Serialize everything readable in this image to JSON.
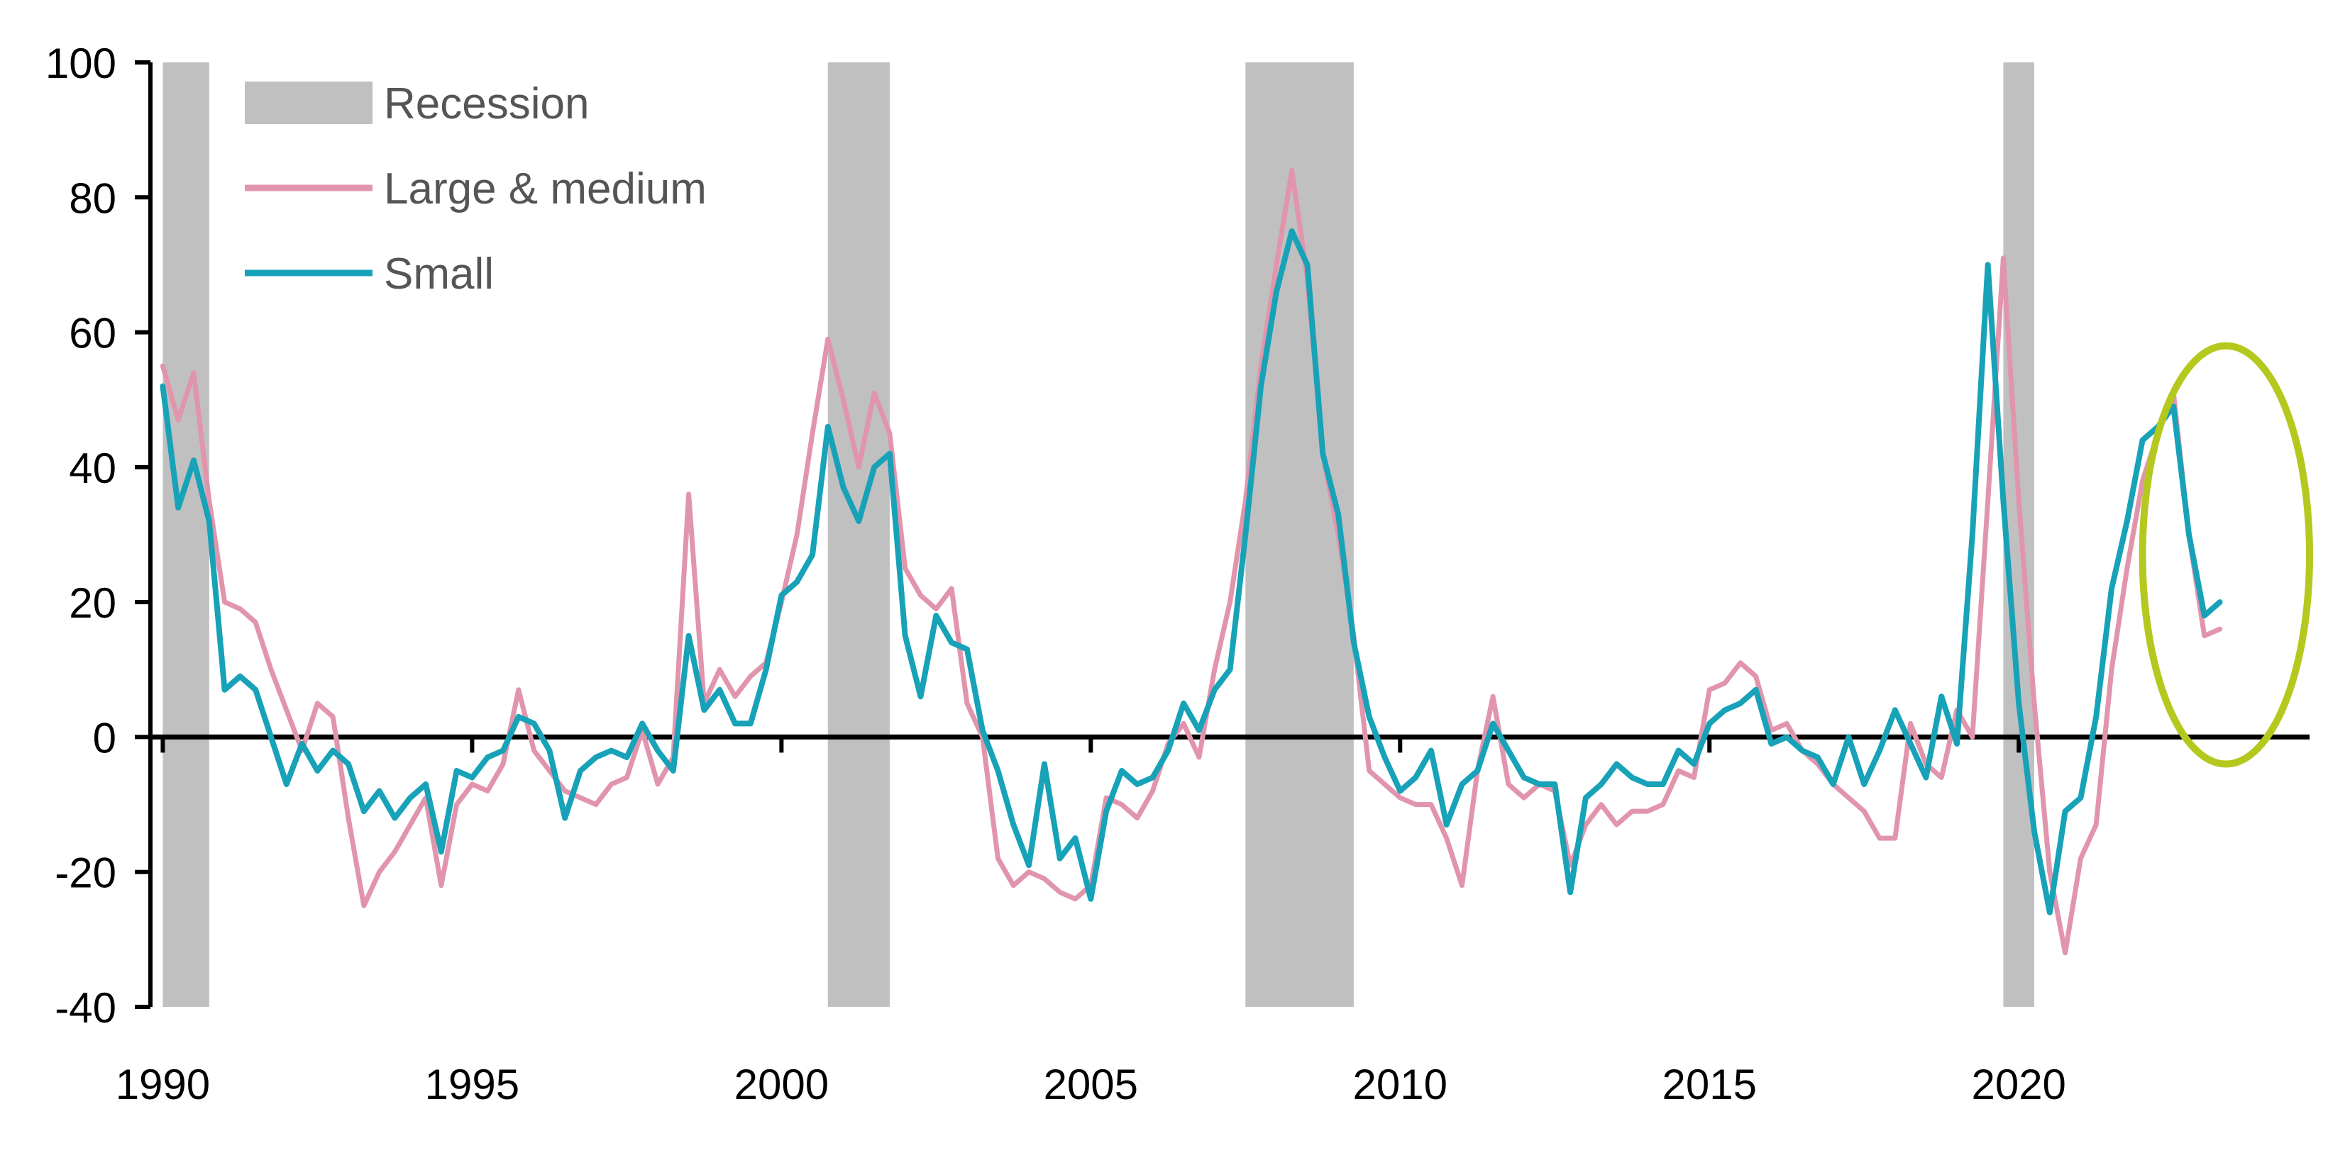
{
  "chart_data": {
    "type": "line",
    "title": "",
    "xlabel": "",
    "ylabel": "",
    "xlim": [
      1989.8,
      2024.7
    ],
    "ylim": [
      -40,
      100
    ],
    "yticks": [
      100,
      80,
      60,
      40,
      20,
      0,
      -20,
      -40
    ],
    "xticks": [
      1990,
      1995,
      2000,
      2005,
      2010,
      2015,
      2020
    ],
    "legend": {
      "placement": "top-left",
      "entries": [
        {
          "label": "Recession",
          "kind": "band",
          "color": "#c0c0c0"
        },
        {
          "label": "Large & medium",
          "kind": "line",
          "color": "#e195ac"
        },
        {
          "label": "Small",
          "kind": "line",
          "color": "#17a2b8"
        }
      ]
    },
    "recessions": [
      [
        1990.0,
        1990.75
      ],
      [
        2000.75,
        2001.75
      ],
      [
        2007.5,
        2009.25
      ],
      [
        2019.75,
        2020.25
      ]
    ],
    "highlight_ellipse": {
      "x_range": [
        2022.0,
        2024.7
      ],
      "y_range": [
        -4,
        58
      ],
      "color": "#b5c81e"
    },
    "zero_line": true,
    "series": [
      {
        "name": "Large & medium",
        "color": "#e195ac",
        "points": [
          [
            1990.0,
            55
          ],
          [
            1990.25,
            47
          ],
          [
            1990.5,
            54
          ],
          [
            1990.75,
            35
          ],
          [
            1991.0,
            20
          ],
          [
            1991.25,
            19
          ],
          [
            1991.5,
            17
          ],
          [
            1991.75,
            10
          ],
          [
            1992.0,
            4
          ],
          [
            1992.25,
            -2
          ],
          [
            1992.5,
            5
          ],
          [
            1992.75,
            3
          ],
          [
            1993.0,
            -12
          ],
          [
            1993.25,
            -25
          ],
          [
            1993.5,
            -20
          ],
          [
            1993.75,
            -17
          ],
          [
            1994.0,
            -13
          ],
          [
            1994.25,
            -9
          ],
          [
            1994.5,
            -22
          ],
          [
            1994.75,
            -10
          ],
          [
            1995.0,
            -7
          ],
          [
            1995.25,
            -8
          ],
          [
            1995.5,
            -4
          ],
          [
            1995.75,
            7
          ],
          [
            1996.0,
            -2
          ],
          [
            1996.25,
            -5
          ],
          [
            1996.5,
            -8
          ],
          [
            1996.75,
            -9
          ],
          [
            1997.0,
            -10
          ],
          [
            1997.25,
            -7
          ],
          [
            1997.5,
            -6
          ],
          [
            1997.75,
            1
          ],
          [
            1998.0,
            -7
          ],
          [
            1998.25,
            -3
          ],
          [
            1998.5,
            36
          ],
          [
            1998.75,
            5
          ],
          [
            1999.0,
            10
          ],
          [
            1999.25,
            6
          ],
          [
            1999.5,
            9
          ],
          [
            1999.75,
            11
          ],
          [
            2000.0,
            20
          ],
          [
            2000.25,
            30
          ],
          [
            2000.5,
            45
          ],
          [
            2000.75,
            59
          ],
          [
            2001.0,
            50
          ],
          [
            2001.25,
            40
          ],
          [
            2001.5,
            51
          ],
          [
            2001.75,
            45
          ],
          [
            2002.0,
            25
          ],
          [
            2002.25,
            21
          ],
          [
            2002.5,
            19
          ],
          [
            2002.75,
            22
          ],
          [
            2003.0,
            5
          ],
          [
            2003.25,
            0
          ],
          [
            2003.5,
            -18
          ],
          [
            2003.75,
            -22
          ],
          [
            2004.0,
            -20
          ],
          [
            2004.25,
            -21
          ],
          [
            2004.5,
            -23
          ],
          [
            2004.75,
            -24
          ],
          [
            2005.0,
            -22
          ],
          [
            2005.25,
            -9
          ],
          [
            2005.5,
            -10
          ],
          [
            2005.75,
            -12
          ],
          [
            2006.0,
            -8
          ],
          [
            2006.25,
            -1
          ],
          [
            2006.5,
            2
          ],
          [
            2006.75,
            -3
          ],
          [
            2007.0,
            10
          ],
          [
            2007.25,
            20
          ],
          [
            2007.5,
            35
          ],
          [
            2007.75,
            55
          ],
          [
            2008.0,
            70
          ],
          [
            2008.25,
            84
          ],
          [
            2008.5,
            68
          ],
          [
            2008.75,
            42
          ],
          [
            2009.0,
            30
          ],
          [
            2009.25,
            15
          ],
          [
            2009.5,
            -5
          ],
          [
            2009.75,
            -7
          ],
          [
            2010.0,
            -9
          ],
          [
            2010.25,
            -10
          ],
          [
            2010.5,
            -10
          ],
          [
            2010.75,
            -15
          ],
          [
            2011.0,
            -22
          ],
          [
            2011.25,
            -5
          ],
          [
            2011.5,
            6
          ],
          [
            2011.75,
            -7
          ],
          [
            2012.0,
            -9
          ],
          [
            2012.25,
            -7
          ],
          [
            2012.5,
            -8
          ],
          [
            2012.75,
            -19
          ],
          [
            2013.0,
            -13
          ],
          [
            2013.25,
            -10
          ],
          [
            2013.5,
            -13
          ],
          [
            2013.75,
            -11
          ],
          [
            2014.0,
            -11
          ],
          [
            2014.25,
            -10
          ],
          [
            2014.5,
            -5
          ],
          [
            2014.75,
            -6
          ],
          [
            2015.0,
            7
          ],
          [
            2015.25,
            8
          ],
          [
            2015.5,
            11
          ],
          [
            2015.75,
            9
          ],
          [
            2016.0,
            1
          ],
          [
            2016.25,
            2
          ],
          [
            2016.5,
            -2
          ],
          [
            2016.75,
            -4
          ],
          [
            2017.0,
            -7
          ],
          [
            2017.25,
            -9
          ],
          [
            2017.5,
            -11
          ],
          [
            2017.75,
            -15
          ],
          [
            2018.0,
            -15
          ],
          [
            2018.25,
            2
          ],
          [
            2018.5,
            -4
          ],
          [
            2018.75,
            -6
          ],
          [
            2019.0,
            4
          ],
          [
            2019.25,
            0
          ],
          [
            2019.5,
            35
          ],
          [
            2019.75,
            71
          ],
          [
            2020.0,
            35
          ],
          [
            2020.25,
            5
          ],
          [
            2020.5,
            -20
          ],
          [
            2020.75,
            -32
          ],
          [
            2021.0,
            -18
          ],
          [
            2021.25,
            -13
          ],
          [
            2021.5,
            10
          ],
          [
            2021.75,
            25
          ],
          [
            2022.0,
            38
          ],
          [
            2022.25,
            45
          ],
          [
            2022.5,
            51
          ],
          [
            2022.75,
            30
          ],
          [
            2023.0,
            15
          ],
          [
            2023.25,
            16
          ]
        ]
      },
      {
        "name": "Small",
        "color": "#17a2b8",
        "points": [
          [
            1990.0,
            52
          ],
          [
            1990.25,
            34
          ],
          [
            1990.5,
            41
          ],
          [
            1990.75,
            32
          ],
          [
            1991.0,
            7
          ],
          [
            1991.25,
            9
          ],
          [
            1991.5,
            7
          ],
          [
            1991.75,
            0
          ],
          [
            1992.0,
            -7
          ],
          [
            1992.25,
            -1
          ],
          [
            1992.5,
            -5
          ],
          [
            1992.75,
            -2
          ],
          [
            1993.0,
            -4
          ],
          [
            1993.25,
            -11
          ],
          [
            1993.5,
            -8
          ],
          [
            1993.75,
            -12
          ],
          [
            1994.0,
            -9
          ],
          [
            1994.25,
            -7
          ],
          [
            1994.5,
            -17
          ],
          [
            1994.75,
            -5
          ],
          [
            1995.0,
            -6
          ],
          [
            1995.25,
            -3
          ],
          [
            1995.5,
            -2
          ],
          [
            1995.75,
            3
          ],
          [
            1996.0,
            2
          ],
          [
            1996.25,
            -2
          ],
          [
            1996.5,
            -12
          ],
          [
            1996.75,
            -5
          ],
          [
            1997.0,
            -3
          ],
          [
            1997.25,
            -2
          ],
          [
            1997.5,
            -3
          ],
          [
            1997.75,
            2
          ],
          [
            1998.0,
            -2
          ],
          [
            1998.25,
            -5
          ],
          [
            1998.5,
            15
          ],
          [
            1998.75,
            4
          ],
          [
            1999.0,
            7
          ],
          [
            1999.25,
            2
          ],
          [
            1999.5,
            2
          ],
          [
            1999.75,
            10
          ],
          [
            2000.0,
            21
          ],
          [
            2000.25,
            23
          ],
          [
            2000.5,
            27
          ],
          [
            2000.75,
            46
          ],
          [
            2001.0,
            37
          ],
          [
            2001.25,
            32
          ],
          [
            2001.5,
            40
          ],
          [
            2001.75,
            42
          ],
          [
            2002.0,
            15
          ],
          [
            2002.25,
            6
          ],
          [
            2002.5,
            18
          ],
          [
            2002.75,
            14
          ],
          [
            2003.0,
            13
          ],
          [
            2003.25,
            1
          ],
          [
            2003.5,
            -5
          ],
          [
            2003.75,
            -13
          ],
          [
            2004.0,
            -19
          ],
          [
            2004.25,
            -4
          ],
          [
            2004.5,
            -18
          ],
          [
            2004.75,
            -15
          ],
          [
            2005.0,
            -24
          ],
          [
            2005.25,
            -11
          ],
          [
            2005.5,
            -5
          ],
          [
            2005.75,
            -7
          ],
          [
            2006.0,
            -6
          ],
          [
            2006.25,
            -2
          ],
          [
            2006.5,
            5
          ],
          [
            2006.75,
            1
          ],
          [
            2007.0,
            7
          ],
          [
            2007.25,
            10
          ],
          [
            2007.5,
            30
          ],
          [
            2007.75,
            52
          ],
          [
            2008.0,
            66
          ],
          [
            2008.25,
            75
          ],
          [
            2008.5,
            70
          ],
          [
            2008.75,
            42
          ],
          [
            2009.0,
            33
          ],
          [
            2009.25,
            14
          ],
          [
            2009.5,
            3
          ],
          [
            2009.75,
            -3
          ],
          [
            2010.0,
            -8
          ],
          [
            2010.25,
            -6
          ],
          [
            2010.5,
            -2
          ],
          [
            2010.75,
            -13
          ],
          [
            2011.0,
            -7
          ],
          [
            2011.25,
            -5
          ],
          [
            2011.5,
            2
          ],
          [
            2011.75,
            -2
          ],
          [
            2012.0,
            -6
          ],
          [
            2012.25,
            -7
          ],
          [
            2012.5,
            -7
          ],
          [
            2012.75,
            -23
          ],
          [
            2013.0,
            -9
          ],
          [
            2013.25,
            -7
          ],
          [
            2013.5,
            -4
          ],
          [
            2013.75,
            -6
          ],
          [
            2014.0,
            -7
          ],
          [
            2014.25,
            -7
          ],
          [
            2014.5,
            -2
          ],
          [
            2014.75,
            -4
          ],
          [
            2015.0,
            2
          ],
          [
            2015.25,
            4
          ],
          [
            2015.5,
            5
          ],
          [
            2015.75,
            7
          ],
          [
            2016.0,
            -1
          ],
          [
            2016.25,
            0
          ],
          [
            2016.5,
            -2
          ],
          [
            2016.75,
            -3
          ],
          [
            2017.0,
            -7
          ],
          [
            2017.25,
            0
          ],
          [
            2017.5,
            -7
          ],
          [
            2017.75,
            -2
          ],
          [
            2018.0,
            4
          ],
          [
            2018.25,
            -1
          ],
          [
            2018.5,
            -6
          ],
          [
            2018.75,
            6
          ],
          [
            2019.0,
            -1
          ],
          [
            2019.25,
            30
          ],
          [
            2019.5,
            70
          ],
          [
            2019.75,
            35
          ],
          [
            2020.0,
            5
          ],
          [
            2020.25,
            -14
          ],
          [
            2020.5,
            -26
          ],
          [
            2020.75,
            -11
          ],
          [
            2021.0,
            -9
          ],
          [
            2021.25,
            3
          ],
          [
            2021.5,
            22
          ],
          [
            2021.75,
            32
          ],
          [
            2022.0,
            44
          ],
          [
            2022.25,
            46
          ],
          [
            2022.5,
            49
          ],
          [
            2022.75,
            30
          ],
          [
            2023.0,
            18
          ],
          [
            2023.25,
            20
          ]
        ]
      }
    ]
  }
}
